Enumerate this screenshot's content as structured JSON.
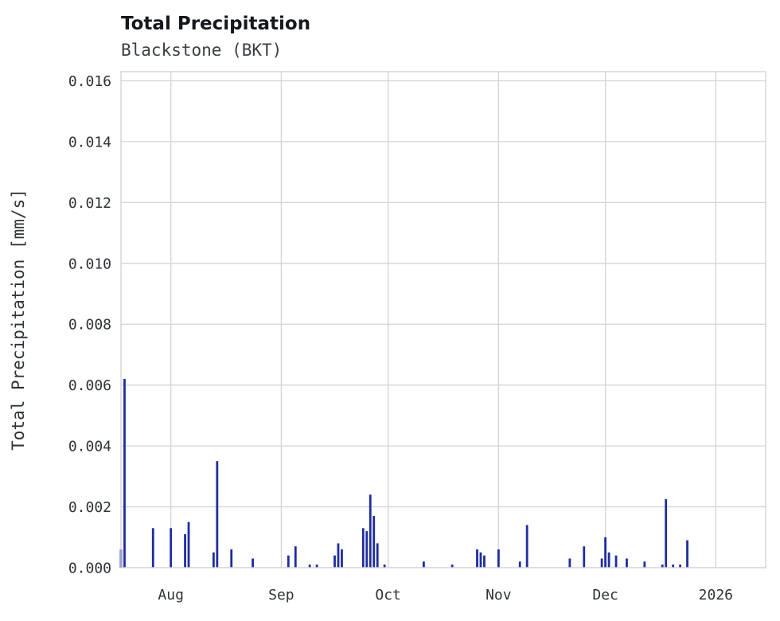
{
  "header": {
    "title": "Total Precipitation",
    "subtitle": "Blackstone (BKT)"
  },
  "chart_data": {
    "type": "bar",
    "title": "Total Precipitation",
    "subtitle": "Blackstone (BKT)",
    "xlabel": "",
    "ylabel": "Total Precipitation [mm/s]",
    "ylim": [
      0,
      0.0163
    ],
    "x_range": [
      "2025-07-18",
      "2026-01-15"
    ],
    "grid": true,
    "legend": "none",
    "bar_color": "#1f2d9e",
    "grid_color": "#d4d4d8",
    "yticks": [
      {
        "v": 0.0,
        "label": "0.000"
      },
      {
        "v": 0.002,
        "label": "0.002"
      },
      {
        "v": 0.004,
        "label": "0.004"
      },
      {
        "v": 0.006,
        "label": "0.006"
      },
      {
        "v": 0.008,
        "label": "0.008"
      },
      {
        "v": 0.01,
        "label": "0.010"
      },
      {
        "v": 0.012,
        "label": "0.012"
      },
      {
        "v": 0.014,
        "label": "0.014"
      },
      {
        "v": 0.016,
        "label": "0.016"
      }
    ],
    "xticks": [
      {
        "t": "2025-08-01",
        "label": "Aug"
      },
      {
        "t": "2025-09-01",
        "label": "Sep"
      },
      {
        "t": "2025-10-01",
        "label": "Oct"
      },
      {
        "t": "2025-11-01",
        "label": "Nov"
      },
      {
        "t": "2025-12-01",
        "label": "Dec"
      },
      {
        "t": "2026-01-01",
        "label": "2026"
      }
    ],
    "points": [
      {
        "t": "2025-07-18",
        "v": 0.0006
      },
      {
        "t": "2025-07-19",
        "v": 0.0062
      },
      {
        "t": "2025-07-27",
        "v": 0.0013
      },
      {
        "t": "2025-08-01",
        "v": 0.0013
      },
      {
        "t": "2025-08-05",
        "v": 0.0011
      },
      {
        "t": "2025-08-06",
        "v": 0.0015
      },
      {
        "t": "2025-08-13",
        "v": 0.0005
      },
      {
        "t": "2025-08-14",
        "v": 0.0035
      },
      {
        "t": "2025-08-18",
        "v": 0.0006
      },
      {
        "t": "2025-08-24",
        "v": 0.0003
      },
      {
        "t": "2025-09-03",
        "v": 0.0004
      },
      {
        "t": "2025-09-05",
        "v": 0.0007
      },
      {
        "t": "2025-09-09",
        "v": 0.0001
      },
      {
        "t": "2025-09-11",
        "v": 0.0001
      },
      {
        "t": "2025-09-16",
        "v": 0.0004
      },
      {
        "t": "2025-09-17",
        "v": 0.0008
      },
      {
        "t": "2025-09-18",
        "v": 0.0006
      },
      {
        "t": "2025-09-24",
        "v": 0.0013
      },
      {
        "t": "2025-09-25",
        "v": 0.0012
      },
      {
        "t": "2025-09-26",
        "v": 0.0024
      },
      {
        "t": "2025-09-27",
        "v": 0.0017
      },
      {
        "t": "2025-09-28",
        "v": 0.0008
      },
      {
        "t": "2025-09-30",
        "v": 0.0001
      },
      {
        "t": "2025-10-11",
        "v": 0.0002
      },
      {
        "t": "2025-10-19",
        "v": 0.0001
      },
      {
        "t": "2025-10-26",
        "v": 0.0006
      },
      {
        "t": "2025-10-27",
        "v": 0.0005
      },
      {
        "t": "2025-10-28",
        "v": 0.0004
      },
      {
        "t": "2025-11-01",
        "v": 0.0006
      },
      {
        "t": "2025-11-07",
        "v": 0.0002
      },
      {
        "t": "2025-11-09",
        "v": 0.0014
      },
      {
        "t": "2025-11-21",
        "v": 0.0003
      },
      {
        "t": "2025-11-25",
        "v": 0.0007
      },
      {
        "t": "2025-11-30",
        "v": 0.0003
      },
      {
        "t": "2025-12-01",
        "v": 0.001
      },
      {
        "t": "2025-12-02",
        "v": 0.0005
      },
      {
        "t": "2025-12-04",
        "v": 0.0004
      },
      {
        "t": "2025-12-07",
        "v": 0.0003
      },
      {
        "t": "2025-12-12",
        "v": 0.0002
      },
      {
        "t": "2025-12-17",
        "v": 0.0001
      },
      {
        "t": "2025-12-18",
        "v": 0.00225
      },
      {
        "t": "2025-12-20",
        "v": 0.0001
      },
      {
        "t": "2025-12-22",
        "v": 0.0001
      },
      {
        "t": "2025-12-24",
        "v": 0.0009
      }
    ]
  }
}
